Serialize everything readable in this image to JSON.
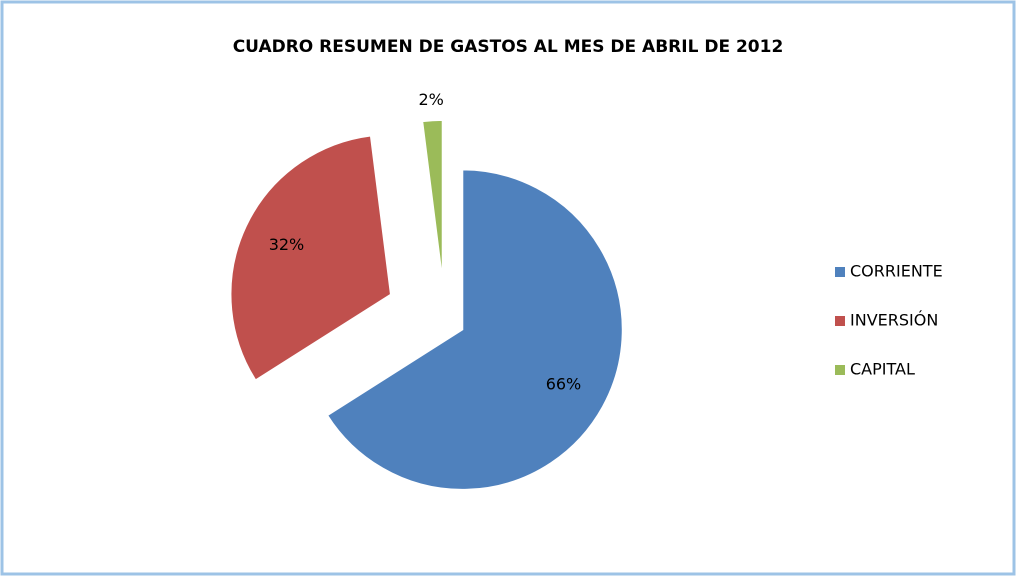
{
  "chart_data": {
    "type": "pie",
    "title": "CUADRO RESUMEN DE GASTOS AL MES DE ABRIL DE 2012",
    "categories": [
      "CORRIENTE",
      "INVERSIÓN",
      "CAPITAL"
    ],
    "values": [
      66,
      32,
      2
    ],
    "value_labels": [
      "66%",
      "32%",
      "2%"
    ],
    "colors": [
      "#4f81bd",
      "#c0504d",
      "#9bbb59"
    ],
    "legend": "right"
  }
}
